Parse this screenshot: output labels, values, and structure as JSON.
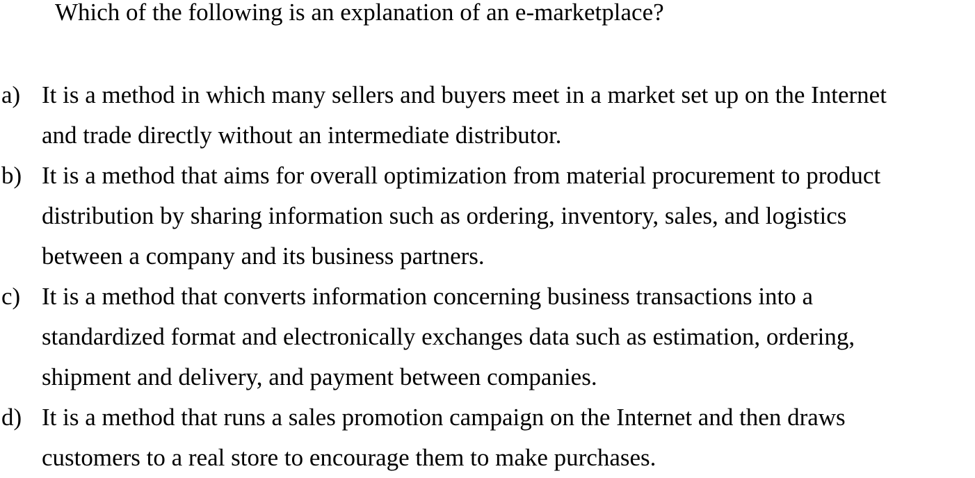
{
  "question": "Which of the following is an explanation of an e-marketplace?",
  "options": [
    {
      "letter": "a)",
      "lines": [
        "It is a method in which many sellers and buyers meet in a market set up on the Internet",
        "and trade directly without an intermediate distributor."
      ]
    },
    {
      "letter": "b)",
      "lines": [
        "It is a method that aims for overall optimization from material procurement to product",
        "distribution by sharing information such as ordering, inventory, sales, and logistics",
        "between a company and its business partners."
      ]
    },
    {
      "letter": "c)",
      "lines": [
        "It is a method that converts information concerning business transactions into a",
        "standardized format and electronically exchanges data such as estimation, ordering,",
        "shipment and delivery, and payment between companies."
      ]
    },
    {
      "letter": "d)",
      "lines": [
        "It is a method that runs a sales promotion campaign on the Internet and then draws",
        "customers to a real store to encourage them to make purchases."
      ]
    }
  ]
}
